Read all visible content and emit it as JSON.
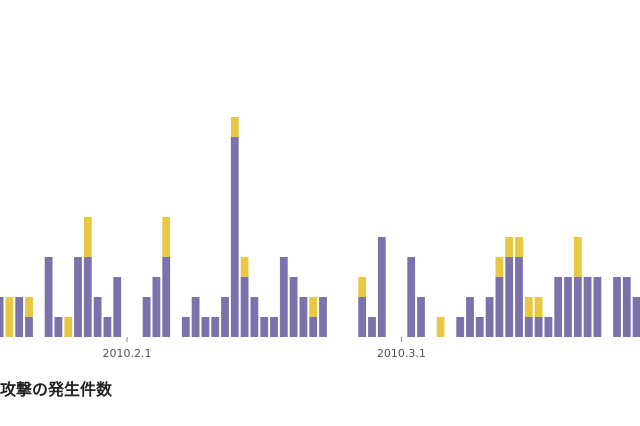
{
  "chart_data": {
    "type": "bar",
    "stacked": true,
    "title": "攻撃の発生件数",
    "x_ticks": [
      {
        "label": "2010.2.1",
        "date": "2010-02-01"
      },
      {
        "label": "2010.3.1",
        "date": "2010-03-01"
      }
    ],
    "ylim": [
      0,
      11
    ],
    "grid": false,
    "series": [
      {
        "color": "#7b72aa",
        "values": [
          2,
          0,
          2,
          1,
          0,
          4,
          1,
          0,
          4,
          4,
          2,
          1,
          3,
          0,
          0,
          2,
          3,
          4,
          0,
          1,
          2,
          1,
          1,
          2,
          10,
          3,
          2,
          1,
          1,
          4,
          3,
          2,
          1,
          2,
          0,
          0,
          0,
          2,
          1,
          5,
          0,
          0,
          4,
          2,
          0,
          0,
          0,
          1,
          2,
          1,
          2,
          3,
          4,
          4,
          1,
          1,
          1,
          3,
          3,
          3,
          3,
          3,
          0,
          3,
          3,
          2,
          3,
          1,
          3
        ]
      },
      {
        "color": "#e8c843",
        "values": [
          0,
          2,
          0,
          1,
          0,
          0,
          0,
          1,
          0,
          2,
          0,
          0,
          0,
          0,
          0,
          0,
          0,
          2,
          0,
          0,
          0,
          0,
          0,
          0,
          1,
          1,
          0,
          0,
          0,
          0,
          0,
          0,
          1,
          0,
          0,
          0,
          0,
          1,
          0,
          0,
          0,
          0,
          0,
          0,
          0,
          1,
          0,
          0,
          0,
          0,
          0,
          1,
          1,
          1,
          1,
          1,
          0,
          0,
          0,
          2,
          0,
          0,
          0,
          0,
          0,
          0,
          0,
          1,
          0
        ]
      }
    ]
  }
}
